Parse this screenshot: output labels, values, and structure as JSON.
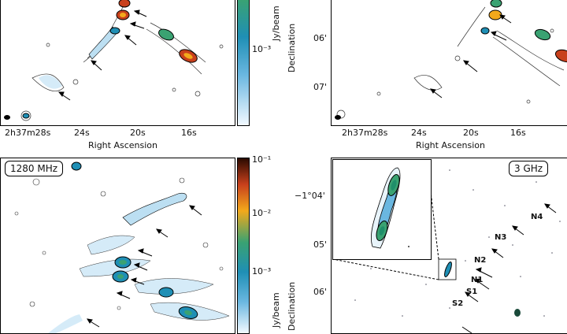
{
  "panels": {
    "top_left": {
      "x_ticks": [
        "2h37m28s",
        "24s",
        "20s",
        "16s"
      ],
      "x_label": "Right Ascension",
      "cbar_ticks": [
        "10⁻³"
      ],
      "cbar_label": "Jy/beam"
    },
    "top_right": {
      "y_ticks": [
        "06'",
        "07'"
      ],
      "y_label": "Declination",
      "x_ticks": [
        "2h37m28s",
        "24s",
        "20s",
        "16s"
      ],
      "x_label": "Right Ascension"
    },
    "bottom_left": {
      "freq_label": "1280 MHz",
      "cbar_ticks": [
        "10⁻¹",
        "10⁻²",
        "10⁻³"
      ],
      "cbar_label": "Jy/beam"
    },
    "bottom_right": {
      "freq_label": "3 GHz",
      "y_ticks": [
        "−1°04'",
        "05'",
        "06'"
      ],
      "y_label": "Declination",
      "sources": [
        "N4",
        "N3",
        "N2",
        "N1",
        "S1",
        "S2"
      ]
    }
  },
  "colors": {
    "colormap": [
      "#f2f9ff",
      "#6ab7e0",
      "#1f8fb5",
      "#3aa272",
      "#f3a91b",
      "#c8401c",
      "#2a0a00"
    ]
  }
}
